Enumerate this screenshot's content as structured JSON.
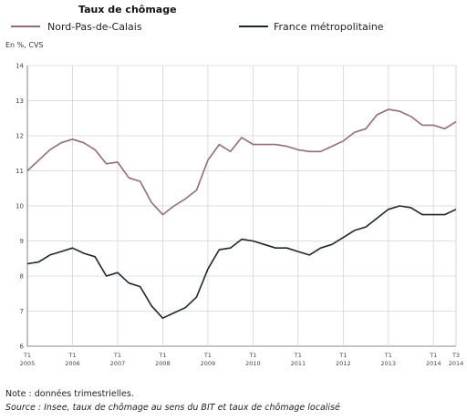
{
  "chart_data": {
    "type": "line",
    "title": "Taux de chômage",
    "unit_label": "En %, CVS",
    "y_ticks": [
      "6",
      "7",
      "8",
      "9",
      "10",
      "11",
      "12",
      "13",
      "14"
    ],
    "ylim": [
      6,
      14
    ],
    "x_ticks": [
      {
        "quarter": "T1",
        "year": "2005",
        "index": 0
      },
      {
        "quarter": "T1",
        "year": "2006",
        "index": 4
      },
      {
        "quarter": "T1",
        "year": "2007",
        "index": 8
      },
      {
        "quarter": "T1",
        "year": "2008",
        "index": 12
      },
      {
        "quarter": "T1",
        "year": "2009",
        "index": 16
      },
      {
        "quarter": "T1",
        "year": "2010",
        "index": 20
      },
      {
        "quarter": "T1",
        "year": "2011",
        "index": 24
      },
      {
        "quarter": "T1",
        "year": "2012",
        "index": 28
      },
      {
        "quarter": "T1",
        "year": "2013",
        "index": 32
      },
      {
        "quarter": "T1",
        "year": "2014",
        "index": 36
      },
      {
        "quarter": "T3",
        "year": "2014",
        "index": 38
      }
    ],
    "x": [
      "2005 T1",
      "2005 T2",
      "2005 T3",
      "2005 T4",
      "2006 T1",
      "2006 T2",
      "2006 T3",
      "2006 T4",
      "2007 T1",
      "2007 T2",
      "2007 T3",
      "2007 T4",
      "2008 T1",
      "2008 T2",
      "2008 T3",
      "2008 T4",
      "2009 T1",
      "2009 T2",
      "2009 T3",
      "2009 T4",
      "2010 T1",
      "2010 T2",
      "2010 T3",
      "2010 T4",
      "2011 T1",
      "2011 T2",
      "2011 T3",
      "2011 T4",
      "2012 T1",
      "2012 T2",
      "2012 T3",
      "2012 T4",
      "2013 T1",
      "2013 T2",
      "2013 T3",
      "2013 T4",
      "2014 T1",
      "2014 T2",
      "2014 T3"
    ],
    "series": [
      {
        "name": "Nord-Pas-de-Calais",
        "color": "#9a6a7a",
        "values": [
          11.0,
          11.3,
          11.6,
          11.8,
          11.9,
          11.8,
          11.6,
          11.2,
          11.25,
          10.8,
          10.7,
          10.1,
          9.75,
          10.0,
          10.2,
          10.45,
          11.3,
          11.75,
          11.55,
          11.95,
          11.75,
          11.75,
          11.75,
          11.7,
          11.6,
          11.55,
          11.55,
          11.7,
          11.85,
          12.1,
          12.2,
          12.6,
          12.75,
          12.7,
          12.55,
          12.3,
          12.3,
          12.2,
          12.4
        ]
      },
      {
        "name": "France métropolitaine",
        "color": "#1b2733",
        "values": [
          8.35,
          8.4,
          8.6,
          8.7,
          8.8,
          8.65,
          8.55,
          8.0,
          8.1,
          7.8,
          7.7,
          7.15,
          6.8,
          6.95,
          7.1,
          7.4,
          8.2,
          8.75,
          8.8,
          9.05,
          9.0,
          8.9,
          8.8,
          8.8,
          8.7,
          8.6,
          8.8,
          8.9,
          9.1,
          9.3,
          9.4,
          9.65,
          9.9,
          10.0,
          9.95,
          9.75,
          9.75,
          9.75,
          9.9
        ]
      }
    ]
  },
  "notes": {
    "note": "Note : données trimestrielles.",
    "source": "Source : Insee, taux de chômage au sens du BIT et taux de chômage localisé"
  }
}
